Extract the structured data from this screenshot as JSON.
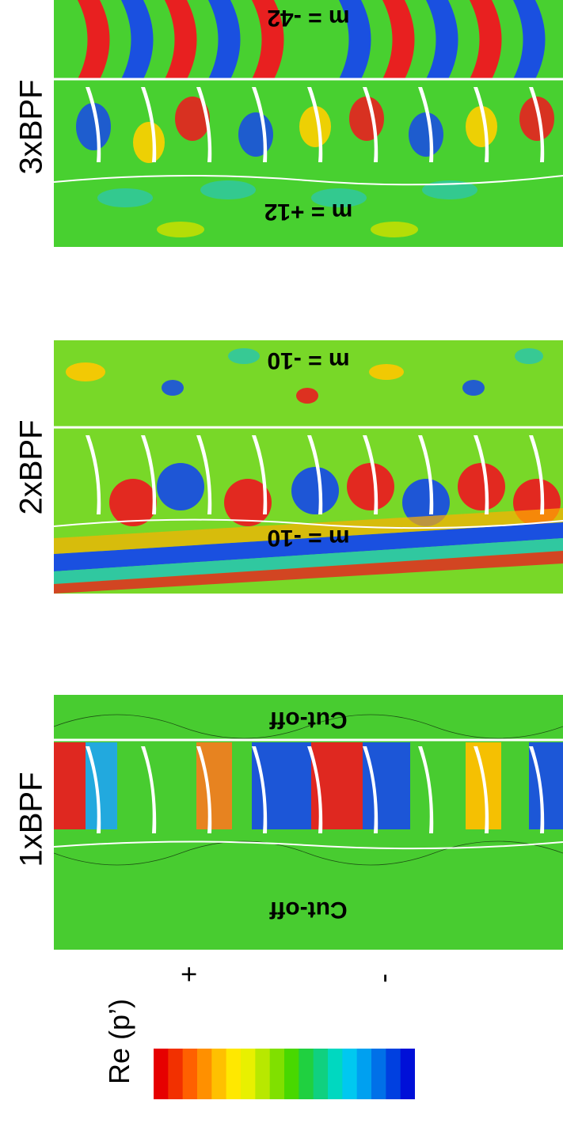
{
  "panels": [
    {
      "row_label": "3xBPF",
      "mode_top": "m = -42",
      "mode_bottom": "m = +12"
    },
    {
      "row_label": "2xBPF",
      "mode_top": "m = -10",
      "mode_bottom": "m = -10"
    },
    {
      "row_label": "1xBPF",
      "mode_top": "Cut-off",
      "mode_bottom": "Cut-off"
    }
  ],
  "legend": {
    "title": "Re (p’)",
    "plus_label": "+",
    "minus_label": "-",
    "colors": [
      "#e60000",
      "#f23000",
      "#ff6000",
      "#ff9000",
      "#ffc000",
      "#ffe800",
      "#e8f000",
      "#b8e800",
      "#80e000",
      "#48d800",
      "#20d040",
      "#10d080",
      "#00d8c0",
      "#00c8f0",
      "#00a0f0",
      "#0070e8",
      "#0040e0",
      "#0010d8"
    ]
  }
}
